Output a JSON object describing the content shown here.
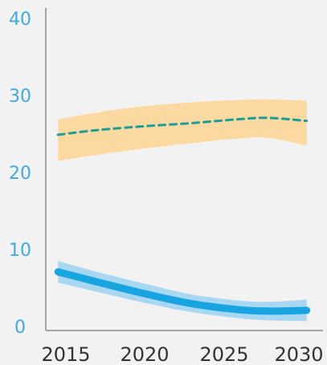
{
  "chart_data": {
    "type": "line",
    "x_ticks": [
      "2015",
      "2020",
      "2025",
      "2030"
    ],
    "y_ticks": [
      "0",
      "10",
      "20",
      "30",
      "40"
    ],
    "xlim": [
      2014,
      2031
    ],
    "ylim": [
      0,
      40
    ],
    "grid": false,
    "series": [
      {
        "style": "dashed",
        "color": "#1a9e96",
        "band_color": "#fdd9a2",
        "x": [
          2014.5,
          2017,
          2020,
          2023,
          2026,
          2028,
          2030.5
        ],
        "y": [
          25.0,
          25.6,
          26.1,
          26.5,
          27.0,
          27.2,
          26.8
        ],
        "lower": [
          21.6,
          22.4,
          23.2,
          23.9,
          24.5,
          24.6,
          23.6
        ],
        "upper": [
          27.0,
          27.9,
          28.7,
          29.2,
          29.5,
          29.6,
          29.4
        ]
      },
      {
        "style": "solid",
        "color": "#17a4e0",
        "band_color": "#a8d7f2",
        "x": [
          2014.5,
          2017,
          2020,
          2023,
          2026,
          2028,
          2030.5
        ],
        "y": [
          7.2,
          5.9,
          4.4,
          3.1,
          2.3,
          2.1,
          2.2
        ],
        "lower": [
          5.8,
          4.6,
          3.2,
          2.0,
          1.2,
          0.9,
          0.8
        ],
        "upper": [
          8.6,
          7.2,
          5.7,
          4.3,
          3.5,
          3.3,
          3.6
        ]
      }
    ]
  }
}
